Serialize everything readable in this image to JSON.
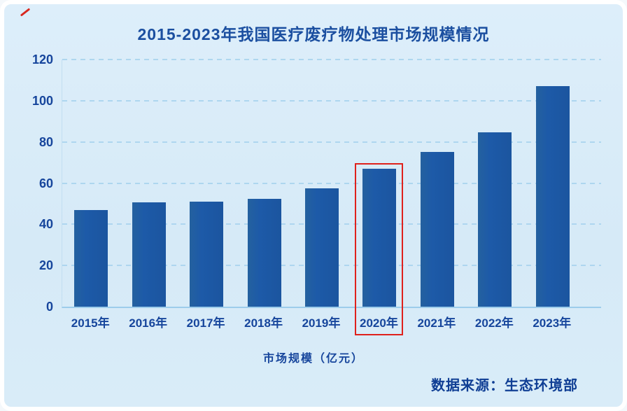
{
  "title": "2015-2023年我国医疗废疗物处理市场规模情况",
  "chart_data": {
    "type": "bar",
    "title": "2015-2023年我国医疗废疗物处理市场规模情况",
    "categories": [
      "2015年",
      "2016年",
      "2017年",
      "2018年",
      "2019年",
      "2020年",
      "2021年",
      "2022年",
      "2023年"
    ],
    "values": [
      47,
      50.5,
      51,
      52.5,
      57.5,
      67,
      75,
      84.5,
      107
    ],
    "xlabel": "市场规模（亿元）",
    "ylabel": "",
    "ylim": [
      0,
      120
    ],
    "yticks": [
      0,
      20,
      40,
      60,
      80,
      100,
      120
    ],
    "grid": true,
    "legend": false,
    "source_note": "数据来源：生态环境部",
    "highlight": {
      "index": 5,
      "category": "2020年",
      "color": "#df211c"
    }
  },
  "colors": {
    "background": "#d9ecf8",
    "frame_border": "#ffffff",
    "bar": "#1d5aa8",
    "grid": "#aed6ef",
    "axis_text": "#16459c",
    "title_text": "#1b4fa0",
    "source_text": "#0f3e94",
    "highlight": "#df211c"
  }
}
